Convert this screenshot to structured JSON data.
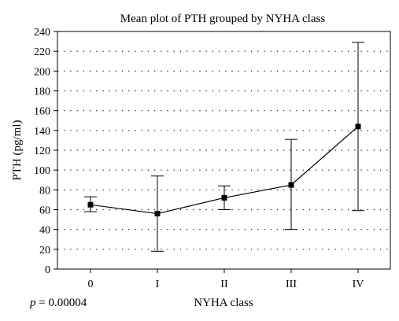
{
  "chart_data": {
    "type": "line",
    "title": "Mean plot of PTH grouped by NYHA class",
    "xlabel": "NYHA class",
    "ylabel": "PTH  (pg/ml)",
    "categories": [
      "0",
      "I",
      "II",
      "III",
      "IV"
    ],
    "ylim": [
      0,
      240
    ],
    "yticks": [
      0,
      20,
      40,
      60,
      80,
      100,
      120,
      140,
      160,
      180,
      200,
      220,
      240
    ],
    "grid": "dotted horizontal",
    "series": [
      {
        "values": [
          65,
          56,
          72,
          85,
          144
        ],
        "error_low": [
          58,
          18,
          60,
          40,
          59
        ],
        "error_high": [
          73,
          94,
          84,
          131,
          229
        ],
        "marker": "square",
        "color": "#000000"
      }
    ],
    "annotation": {
      "p_symbol": "p",
      "p_value": " = 0.00004"
    }
  }
}
